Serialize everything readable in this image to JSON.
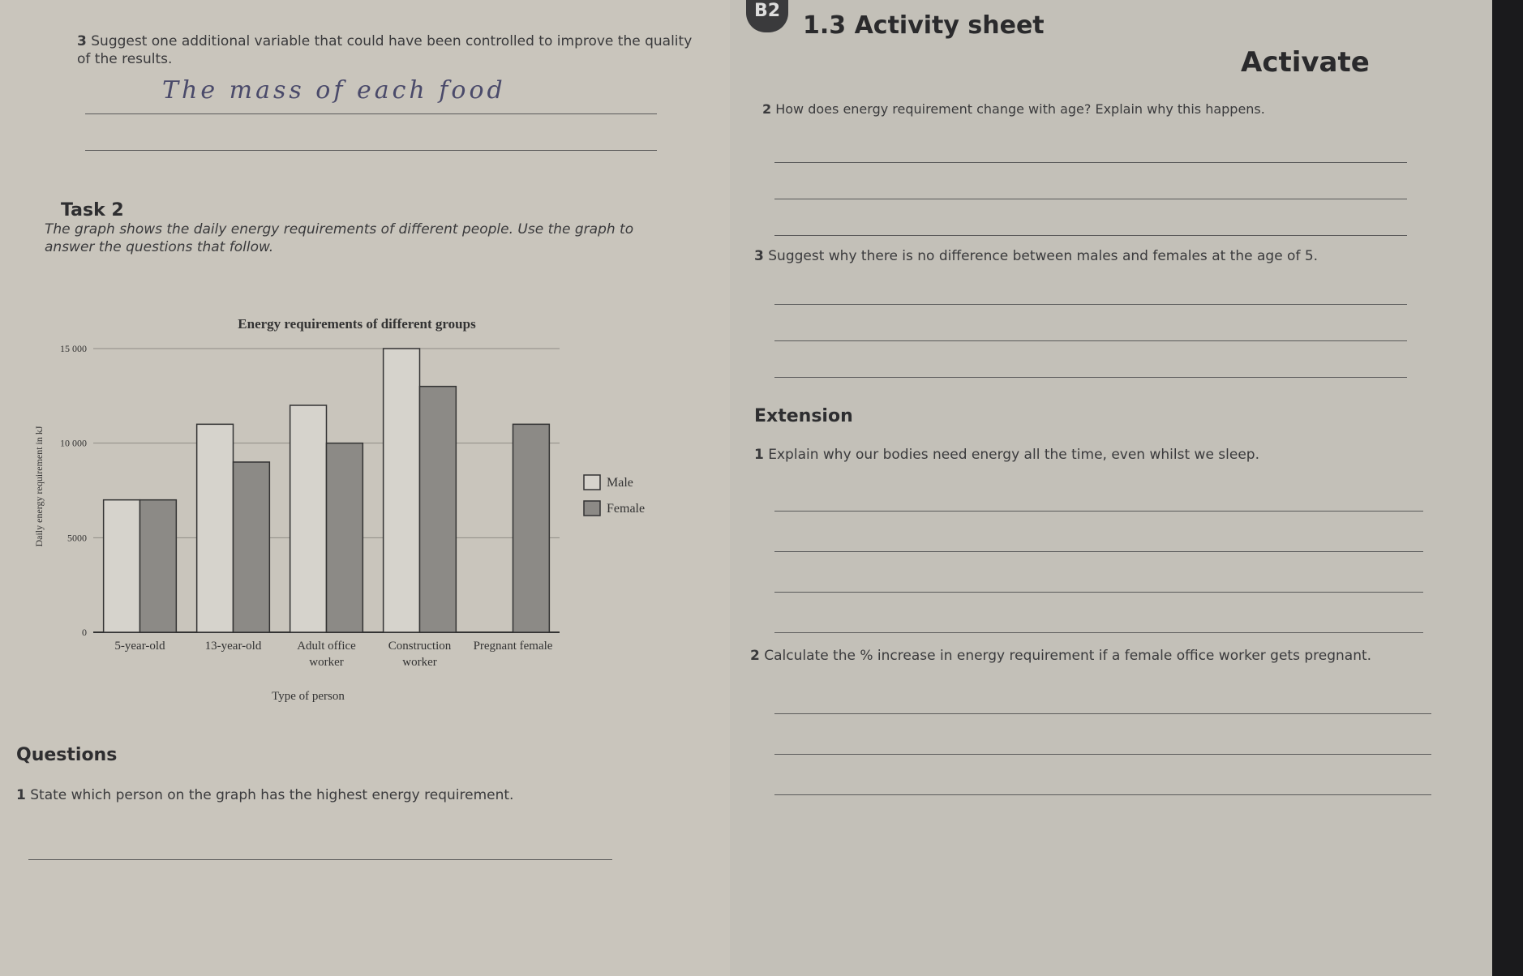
{
  "header": {
    "badge": "B2",
    "title": "1.3 Activity sheet",
    "tag": "Activate"
  },
  "left": {
    "q3": {
      "number": "3",
      "text": "Suggest one additional variable that could have been controlled to improve the quality of the results.",
      "answer": "The mass of each food"
    },
    "task2": {
      "heading": "Task 2",
      "intro": "The graph shows the daily energy requirements of different people. Use the graph to answer the questions that follow."
    },
    "questions": {
      "heading": "Questions",
      "items": [
        {
          "number": "1",
          "text": "State which person on the graph has the highest energy requirement."
        }
      ]
    }
  },
  "right": {
    "questions": [
      {
        "number": "2",
        "text": "How does energy requirement change with age? Explain why this happens."
      },
      {
        "number": "3",
        "text": "Suggest why there is no difference between males and females at the age of 5."
      }
    ],
    "extension": {
      "heading": "Extension",
      "items": [
        {
          "number": "1",
          "text": "Explain why our bodies need energy all the time, even whilst we sleep."
        },
        {
          "number": "2",
          "text": "Calculate the % increase in energy requirement if a female office worker gets pregnant."
        }
      ]
    }
  },
  "chart_data": {
    "type": "bar",
    "title": "Energy requirements of different groups",
    "x_label": "Type of person",
    "y_label": "Daily energy requirement in kJ",
    "categories": [
      "5-year-old",
      "13-year-old",
      "Adult office worker",
      "Construction worker",
      "Pregnant female"
    ],
    "series": [
      {
        "name": "Male",
        "color": "#d6d3cc",
        "values": [
          7000,
          11000,
          12000,
          15000,
          null
        ]
      },
      {
        "name": "Female",
        "color": "#8c8a86",
        "values": [
          7000,
          9000,
          10000,
          13000,
          11000
        ]
      }
    ],
    "ylim": [
      0,
      15000
    ],
    "yticks": [
      0,
      5000,
      {
        "value": 10000,
        "label": "10 000"
      },
      {
        "value": 15000,
        "label": "15 000"
      }
    ],
    "grid": true,
    "legend": "right"
  }
}
